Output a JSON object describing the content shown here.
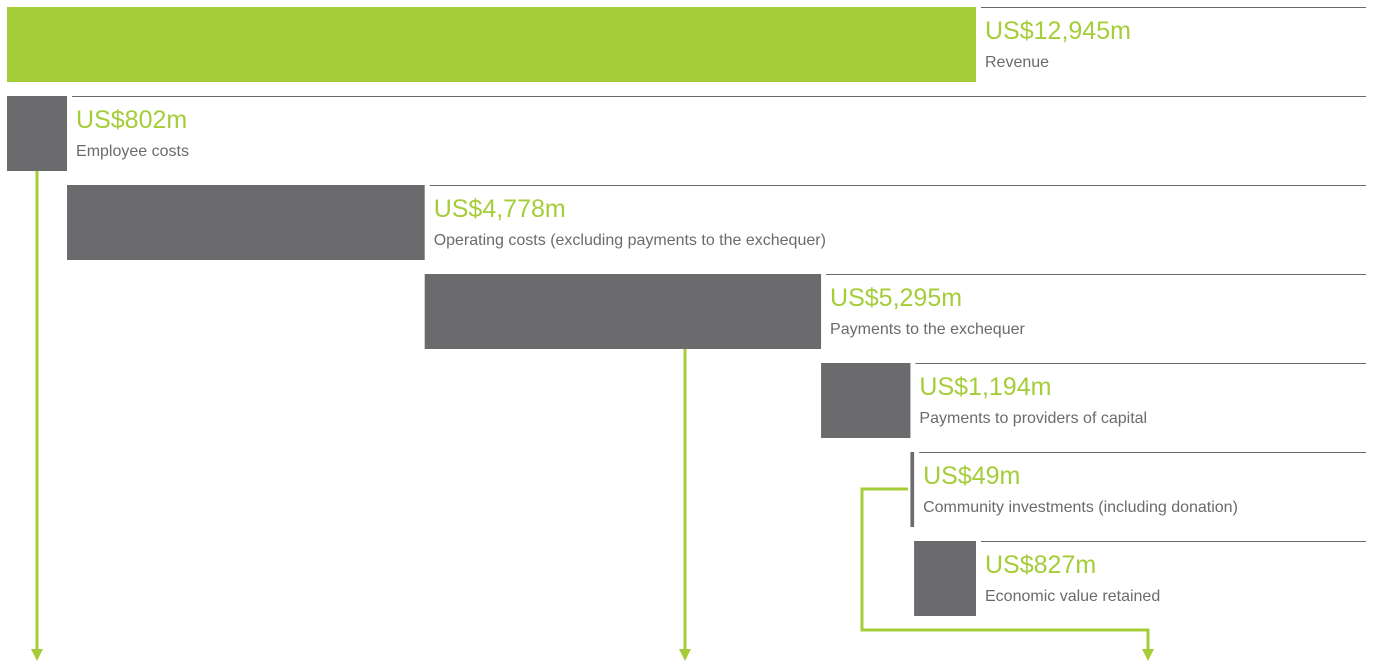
{
  "chart_data": {
    "type": "waterfall",
    "categories": [
      "Revenue",
      "Employee costs",
      "Operating costs (excluding payments to the exchequer)",
      "Payments to the exchequer",
      "Payments to providers of capital",
      "Community investments (including donation)",
      "Economic value retained"
    ],
    "values": [
      12945,
      802,
      4778,
      5295,
      1194,
      49,
      827
    ],
    "value_labels": [
      "US$12,945m",
      "US$802m",
      "US$4,778m",
      "US$5,295m",
      "US$1,194m",
      "US$49m",
      "US$827m"
    ],
    "colors": [
      "#a5cd39",
      "#6b6b6d",
      "#6b6b6d",
      "#6b6b6d",
      "#6b6b6d",
      "#6b6b6d",
      "#6b6b6d"
    ]
  }
}
